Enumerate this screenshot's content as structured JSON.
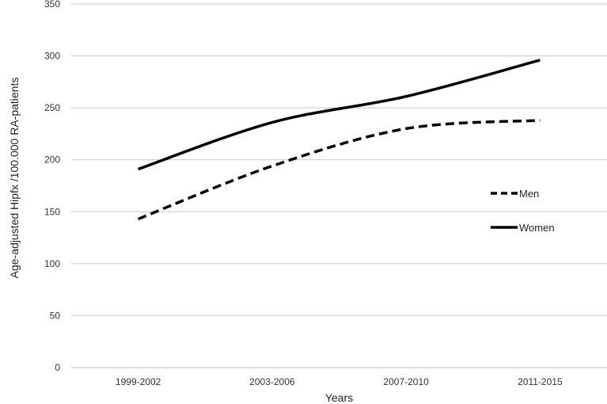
{
  "chart_data": {
    "type": "line",
    "categories": [
      "1999-2002",
      "2003-2006",
      "2007-2010",
      "2011-2015"
    ],
    "series": [
      {
        "name": "Men",
        "values": [
          143,
          194,
          230,
          238
        ],
        "style": "dashed",
        "color": "#000000"
      },
      {
        "name": "Women",
        "values": [
          191,
          236,
          261,
          296
        ],
        "style": "solid",
        "color": "#000000"
      }
    ],
    "ylim": [
      0,
      350
    ],
    "yticks": [
      0,
      50,
      100,
      150,
      200,
      250,
      300,
      350
    ],
    "xlabel": "Years",
    "ylabel": "Age-adjusted Hipfx /100.000 RA-patients",
    "grid": true,
    "legend_position": "right"
  }
}
